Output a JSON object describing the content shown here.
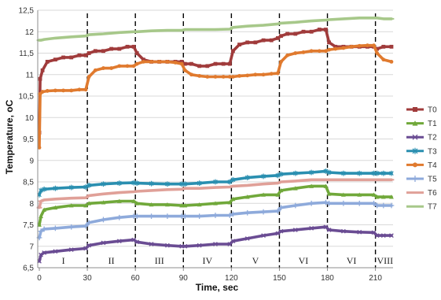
{
  "chart_data": {
    "type": "line",
    "xlabel": "Time, sec",
    "ylabel": "Temperature, oC",
    "xlim": [
      -1,
      221
    ],
    "ylim": [
      6.5,
      12.5
    ],
    "x_ticks": [
      0,
      30,
      60,
      90,
      120,
      150,
      180,
      210
    ],
    "x_tick_labels": [
      "0",
      "30",
      "60",
      "90",
      "120",
      "150",
      "180",
      "210"
    ],
    "y_ticks": [
      6.5,
      7,
      7.5,
      8,
      8.5,
      9,
      9.5,
      10,
      10.5,
      11,
      11.5,
      12,
      12.5
    ],
    "y_tick_labels": [
      "6,5",
      "7",
      "7,5",
      "8",
      "8,5",
      "9",
      "9,5",
      "10",
      "10,5",
      "11",
      "11,5",
      "12",
      "12,5"
    ],
    "grid": true,
    "legend_position": "right",
    "phase_boundaries": [
      30,
      60,
      90,
      120,
      150,
      180,
      210
    ],
    "phases": [
      {
        "label": "I",
        "x": 15
      },
      {
        "label": "II",
        "x": 45
      },
      {
        "label": "III",
        "x": 75
      },
      {
        "label": "IV",
        "x": 105
      },
      {
        "label": "V",
        "x": 135
      },
      {
        "label": "VI",
        "x": 165
      },
      {
        "label": "VI",
        "x": 195
      },
      {
        "label": "VIII",
        "x": 216
      }
    ],
    "series": [
      {
        "name": "T0",
        "color": "#a03b3b",
        "marker": "square",
        "x": [
          0,
          0.5,
          2,
          5,
          10,
          15,
          20,
          25,
          29,
          31,
          35,
          40,
          45,
          50,
          55,
          59,
          61,
          65,
          70,
          75,
          80,
          85,
          89,
          91,
          95,
          100,
          105,
          110,
          115,
          119,
          121,
          125,
          130,
          135,
          140,
          145,
          149,
          151,
          155,
          160,
          165,
          170,
          175,
          179,
          181,
          185,
          190,
          195,
          200,
          205,
          209,
          211,
          215,
          220
        ],
        "y": [
          9.65,
          10.9,
          11.1,
          11.3,
          11.35,
          11.4,
          11.4,
          11.45,
          11.45,
          11.5,
          11.55,
          11.55,
          11.6,
          11.6,
          11.65,
          11.65,
          11.5,
          11.35,
          11.3,
          11.3,
          11.3,
          11.3,
          11.3,
          11.25,
          11.25,
          11.2,
          11.2,
          11.25,
          11.25,
          11.25,
          11.55,
          11.7,
          11.75,
          11.75,
          11.8,
          11.8,
          11.85,
          11.9,
          11.95,
          11.95,
          12.0,
          12.0,
          12.05,
          12.05,
          11.75,
          11.65,
          11.65,
          11.65,
          11.65,
          11.65,
          11.65,
          11.6,
          11.65,
          11.65
        ]
      },
      {
        "name": "T1",
        "color": "#70a83a",
        "marker": "triangle",
        "x": [
          0,
          1,
          3,
          10,
          20,
          29,
          31,
          40,
          50,
          59,
          61,
          70,
          80,
          89,
          91,
          100,
          110,
          119,
          121,
          130,
          140,
          149,
          151,
          160,
          170,
          179,
          181,
          190,
          200,
          209,
          211,
          215,
          220
        ],
        "y": [
          7.5,
          7.7,
          7.85,
          7.9,
          7.95,
          7.95,
          8.0,
          8.02,
          8.05,
          8.05,
          8.0,
          7.97,
          7.97,
          7.95,
          7.95,
          7.97,
          8.0,
          8.02,
          8.1,
          8.15,
          8.2,
          8.2,
          8.3,
          8.35,
          8.4,
          8.4,
          8.22,
          8.2,
          8.2,
          8.2,
          8.15,
          8.15,
          8.15
        ]
      },
      {
        "name": "T2",
        "color": "#6a4c93",
        "marker": "x",
        "x": [
          0,
          1,
          3,
          10,
          20,
          29,
          31,
          40,
          50,
          59,
          61,
          70,
          80,
          89,
          91,
          100,
          110,
          119,
          121,
          130,
          140,
          149,
          151,
          160,
          170,
          179,
          181,
          190,
          200,
          209,
          211,
          215,
          220
        ],
        "y": [
          6.65,
          6.8,
          6.85,
          6.88,
          6.92,
          6.95,
          7.02,
          7.08,
          7.12,
          7.15,
          7.1,
          7.05,
          7.02,
          7.0,
          7.0,
          7.02,
          7.05,
          7.05,
          7.12,
          7.18,
          7.25,
          7.3,
          7.35,
          7.38,
          7.42,
          7.45,
          7.38,
          7.35,
          7.33,
          7.32,
          7.25,
          7.25,
          7.25
        ]
      },
      {
        "name": "T3",
        "color": "#2a8fb0",
        "marker": "asterisk",
        "x": [
          0,
          1,
          3,
          10,
          20,
          29,
          31,
          40,
          50,
          59,
          61,
          70,
          80,
          89,
          91,
          100,
          110,
          119,
          121,
          130,
          140,
          149,
          151,
          160,
          170,
          179,
          181,
          190,
          200,
          209,
          211,
          215,
          220
        ],
        "y": [
          8.2,
          8.3,
          8.33,
          8.35,
          8.37,
          8.38,
          8.42,
          8.45,
          8.47,
          8.48,
          8.47,
          8.46,
          8.45,
          8.45,
          8.45,
          8.47,
          8.5,
          8.5,
          8.55,
          8.6,
          8.63,
          8.65,
          8.68,
          8.7,
          8.72,
          8.75,
          8.72,
          8.7,
          8.7,
          8.7,
          8.7,
          8.7,
          8.7
        ]
      },
      {
        "name": "T4",
        "color": "#e07a2e",
        "marker": "circle",
        "x": [
          0,
          0.5,
          2,
          5,
          10,
          15,
          20,
          25,
          29,
          31,
          35,
          40,
          45,
          50,
          55,
          59,
          61,
          65,
          70,
          75,
          80,
          85,
          89,
          91,
          95,
          100,
          105,
          110,
          115,
          119,
          121,
          125,
          130,
          135,
          140,
          145,
          149,
          151,
          155,
          160,
          165,
          170,
          175,
          179,
          181,
          185,
          190,
          195,
          200,
          205,
          209,
          211,
          215,
          220
        ],
        "y": [
          9.3,
          10.55,
          10.6,
          10.62,
          10.63,
          10.63,
          10.63,
          10.65,
          10.65,
          10.95,
          11.1,
          11.15,
          11.15,
          11.2,
          11.2,
          11.2,
          11.25,
          11.3,
          11.3,
          11.3,
          11.3,
          11.28,
          11.25,
          11.1,
          11.0,
          10.97,
          10.95,
          10.95,
          10.95,
          10.95,
          10.95,
          10.97,
          10.98,
          11.0,
          11.0,
          11.02,
          11.03,
          11.3,
          11.45,
          11.5,
          11.52,
          11.55,
          11.55,
          11.55,
          11.58,
          11.6,
          11.62,
          11.65,
          11.67,
          11.68,
          11.68,
          11.5,
          11.35,
          11.3
        ]
      },
      {
        "name": "T5",
        "color": "#8eaadb",
        "marker": "plus",
        "x": [
          0,
          1,
          3,
          10,
          20,
          29,
          31,
          40,
          50,
          59,
          61,
          70,
          80,
          89,
          91,
          100,
          110,
          119,
          121,
          130,
          140,
          149,
          151,
          160,
          170,
          179,
          181,
          190,
          200,
          209,
          211,
          215,
          220
        ],
        "y": [
          7.2,
          7.35,
          7.4,
          7.42,
          7.45,
          7.47,
          7.55,
          7.62,
          7.67,
          7.7,
          7.7,
          7.7,
          7.7,
          7.7,
          7.7,
          7.7,
          7.72,
          7.72,
          7.75,
          7.78,
          7.8,
          7.82,
          7.9,
          7.95,
          8.0,
          8.02,
          8.0,
          8.0,
          8.0,
          8.0,
          7.95,
          7.95,
          7.95
        ]
      },
      {
        "name": "T6",
        "color": "#e0a098",
        "marker": "dash",
        "x": [
          0,
          1,
          3,
          10,
          20,
          29,
          31,
          40,
          50,
          59,
          61,
          70,
          80,
          89,
          91,
          100,
          110,
          119,
          121,
          130,
          140,
          149,
          151,
          160,
          170,
          179,
          181,
          190,
          200,
          209,
          211,
          215,
          220
        ],
        "y": [
          7.9,
          8.05,
          8.08,
          8.1,
          8.12,
          8.13,
          8.18,
          8.22,
          8.25,
          8.27,
          8.28,
          8.3,
          8.32,
          8.33,
          8.35,
          8.35,
          8.37,
          8.38,
          8.4,
          8.42,
          8.45,
          8.47,
          8.5,
          8.52,
          8.55,
          8.55,
          8.55,
          8.55,
          8.55,
          8.55,
          8.55,
          8.55,
          8.55
        ]
      },
      {
        "name": "T7",
        "color": "#a7c88a",
        "marker": "dash",
        "x": [
          0,
          1,
          3,
          10,
          20,
          29,
          31,
          40,
          50,
          59,
          61,
          70,
          80,
          89,
          91,
          100,
          110,
          119,
          121,
          130,
          140,
          149,
          151,
          160,
          170,
          179,
          181,
          190,
          200,
          209,
          211,
          215,
          220
        ],
        "y": [
          11.8,
          11.8,
          11.82,
          11.85,
          11.88,
          11.9,
          11.93,
          11.95,
          11.98,
          12.0,
          12.0,
          12.02,
          12.03,
          12.03,
          12.05,
          12.05,
          12.05,
          12.06,
          12.1,
          12.13,
          12.15,
          12.18,
          12.2,
          12.22,
          12.25,
          12.27,
          12.28,
          12.3,
          12.32,
          12.32,
          12.32,
          12.3,
          12.3
        ]
      }
    ]
  }
}
